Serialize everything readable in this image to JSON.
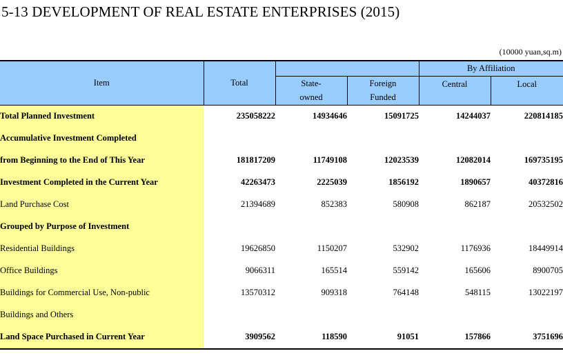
{
  "title": "5-13  DEVELOPMENT OF REAL ESTATE ENTERPRISES (2015)",
  "unit": "(10000 yuan,sq.m)",
  "header": {
    "item": "Item",
    "total": "Total",
    "state_owned_1": "State-",
    "state_owned_2": "owned",
    "foreign_1": "Foreign",
    "foreign_2": "Funded",
    "by_affiliation": "By Affiliation",
    "central": "Central",
    "local": "Local"
  },
  "rows": [
    {
      "label": "Total Planned Investment",
      "total": "235058222",
      "state": "14934646",
      "foreign": "15091725",
      "central": "14244037",
      "local": "220814185"
    },
    {
      "label": "Accumulative Investment Completed",
      "total": "",
      "state": "",
      "foreign": "",
      "central": "",
      "local": ""
    },
    {
      "label": "from Beginning to the End of This Year",
      "total": "181817209",
      "state": "11749108",
      "foreign": "12023539",
      "central": "12082014",
      "local": "169735195"
    },
    {
      "label": "Investment Completed in the Current Year",
      "total": "42263473",
      "state": "2225039",
      "foreign": "1856192",
      "central": "1890657",
      "local": "40372816"
    },
    {
      "label": "Land Purchase Cost",
      "total": "21394689",
      "state": "852383",
      "foreign": "580908",
      "central": "862187",
      "local": "20532502"
    },
    {
      "label": "Grouped by Purpose of Investment",
      "total": "",
      "state": "",
      "foreign": "",
      "central": "",
      "local": ""
    },
    {
      "label": "Residential Buildings",
      "total": "19626850",
      "state": "1150207",
      "foreign": "532902",
      "central": "1176936",
      "local": "18449914"
    },
    {
      "label": "Office Buildings",
      "total": "9066311",
      "state": "165514",
      "foreign": "559142",
      "central": "165606",
      "local": "8900705"
    },
    {
      "label": "Buildings for Commercial Use, Non-public",
      "total": "13570312",
      "state": "909318",
      "foreign": "764148",
      "central": "548115",
      "local": "13022197"
    },
    {
      "label": "Buildings and Others",
      "total": "",
      "state": "",
      "foreign": "",
      "central": "",
      "local": ""
    },
    {
      "label": "Land Space Purchased in Current Year",
      "total": "3909562",
      "state": "118590",
      "foreign": "91051",
      "central": "157866",
      "local": "3751696"
    }
  ]
}
